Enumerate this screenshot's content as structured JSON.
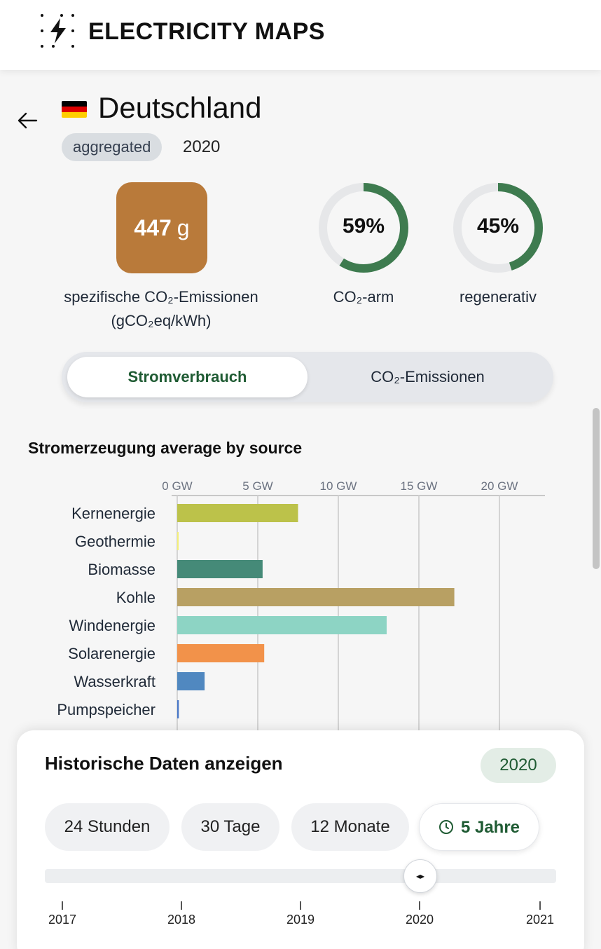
{
  "app": {
    "title": "ELECTRICITY MAPS"
  },
  "zone": {
    "name": "Deutschland",
    "badge": "aggregated",
    "year": "2020",
    "flag_colors": [
      "#000000",
      "#dd0000",
      "#ffce00"
    ]
  },
  "stats": {
    "carbon_intensity_value": "447",
    "carbon_intensity_unit": "g",
    "carbon_intensity_color": "#b97a3a",
    "carbon_label_line1": "spezifische CO₂-Emissionen",
    "carbon_label_line2": "(gCO₂eq/kWh)",
    "low_carbon_pct": "59%",
    "low_carbon_fraction": 0.59,
    "low_carbon_label": "CO₂-arm",
    "renewable_pct": "45%",
    "renewable_fraction": 0.45,
    "renewable_label": "regenerativ",
    "ring_color": "#3e7b4f"
  },
  "toggle": {
    "active_label": "Stromverbrauch",
    "inactive_label": "CO₂-Emissionen"
  },
  "chart_data": {
    "type": "bar",
    "orientation": "horizontal",
    "title": "Stromerzeugung average by source",
    "xlabel": "",
    "ylabel": "",
    "xlim": [
      0,
      23
    ],
    "x_ticks": [
      0,
      5,
      10,
      15,
      20
    ],
    "x_tick_labels": [
      "0 GW",
      "5 GW",
      "10 GW",
      "15 GW",
      "20 GW"
    ],
    "categories": [
      "Kernenergie",
      "Geothermie",
      "Biomasse",
      "Kohle",
      "Windenergie",
      "Solarenergie",
      "Wasserkraft",
      "Pumpspeicher"
    ],
    "values": [
      7.5,
      0.02,
      5.3,
      17.2,
      13.0,
      5.4,
      1.7,
      0.1
    ],
    "colors": [
      "#bcc24a",
      "#f3ef7a",
      "#458a78",
      "#b8a063",
      "#8dd4c4",
      "#f2924a",
      "#5088c0",
      "#4a78c8"
    ],
    "unit": "GW"
  },
  "history": {
    "title": "Historische Daten anzeigen",
    "year_badge": "2020",
    "ranges": [
      {
        "label": "24 Stunden",
        "active": false
      },
      {
        "label": "30 Tage",
        "active": false
      },
      {
        "label": "12 Monate",
        "active": false
      },
      {
        "label": "5 Jahre",
        "active": true
      }
    ],
    "slider_value": "2020",
    "slider_icon": "◂▸",
    "ticks": [
      "2017",
      "2018",
      "2019",
      "2020",
      "2021"
    ]
  }
}
